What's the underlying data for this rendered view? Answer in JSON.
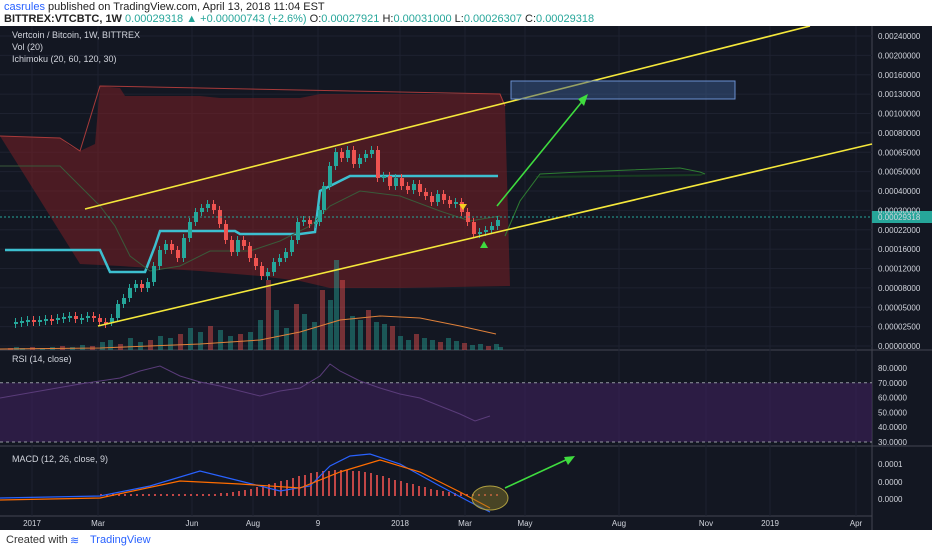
{
  "header": {
    "user": "casrules",
    "published": " published on TradingView.com, April 13, 2018 11:04 EST",
    "symbol": "BITTREX:VTCBTC, 1W",
    "price": "0.00029318",
    "change": "+0.00000743 (+2.6%)",
    "open_label": "O:",
    "open": "0.00027921",
    "high_label": "H:",
    "high": "0.00031000",
    "low_label": "L:",
    "low": "0.00026307",
    "close_label": "C:",
    "close": "0.00029318"
  },
  "footer": {
    "created": "Created with",
    "brand": "TradingView"
  },
  "chart_data": [
    {
      "type": "candlestick",
      "title": "Vertcoin / Bitcoin, 1W, BITTREX",
      "indicators": [
        "Vol (20)",
        "Ichimoku (20, 60, 120, 30)"
      ],
      "y_scale": "log",
      "y_ticks": [
        "0.00240000",
        "0.00200000",
        "0.00160000",
        "0.00130000",
        "0.00100000",
        "0.00080000",
        "0.00065000",
        "0.00050000",
        "0.00040000",
        "0.00030000",
        "0.00022000",
        "0.00016000",
        "0.00012000",
        "0.00008000",
        "0.00005000",
        "0.00002500",
        "0.00000000"
      ],
      "last_price_label": "0.00029318",
      "x_ticks": [
        "2017",
        "Mar",
        "Jun",
        "Aug",
        "9",
        "2018",
        "Mar",
        "May",
        "Aug",
        "Nov",
        "2019",
        "Apr"
      ],
      "colors": {
        "up": "#26a69a",
        "down": "#ef5350",
        "channel": "#f5e83b",
        "kijun": "#3dbfcf",
        "cloud": "#7a1f24",
        "arrow": "#3fdc3f"
      }
    },
    {
      "type": "line",
      "title": "RSI (14, close)",
      "y_ticks": [
        "80.0000",
        "70.0000",
        "60.0000",
        "50.0000",
        "40.0000",
        "30.0000"
      ],
      "levels": [
        70,
        30
      ]
    },
    {
      "type": "line",
      "title": "MACD (12, 26, close, 9)",
      "y_ticks": [
        "0.0001",
        "0.0000",
        "0.0000"
      ],
      "series": [
        {
          "values": []
        },
        {
          "values": []
        }
      ]
    }
  ]
}
